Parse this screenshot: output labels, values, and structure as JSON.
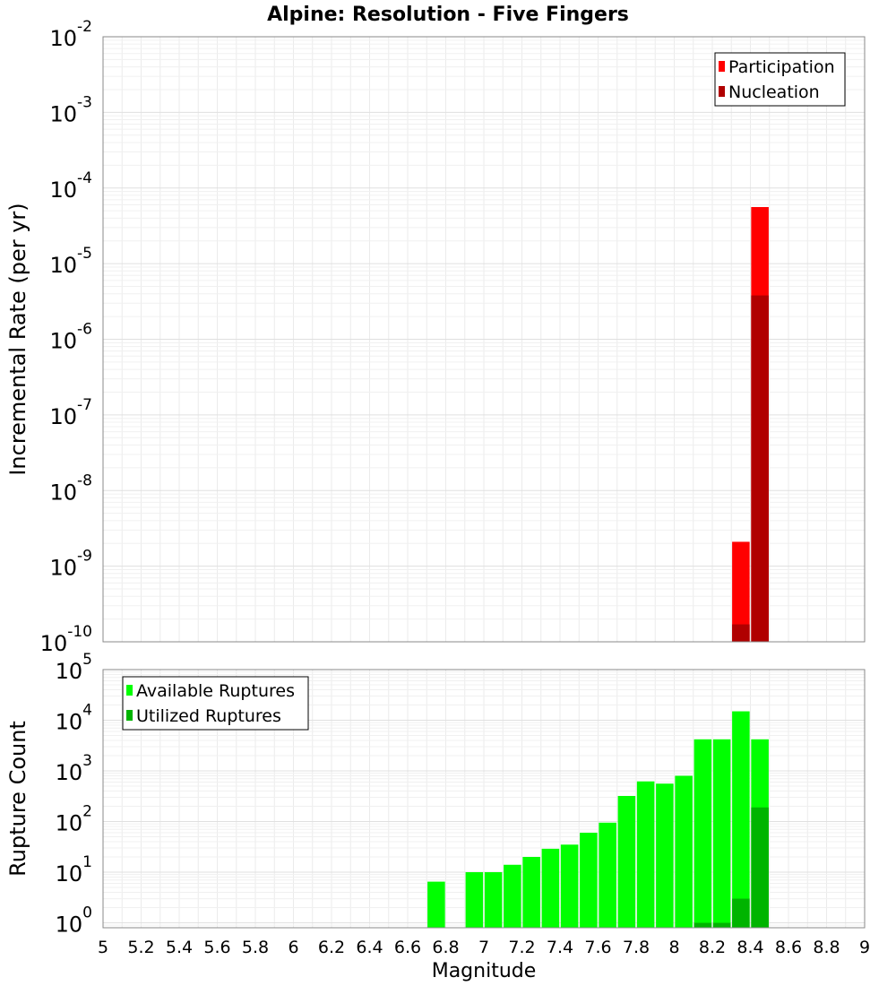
{
  "figure": {
    "title": "Alpine: Resolution - Five Fingers",
    "xlabel": "Magnitude"
  },
  "chart_data": [
    {
      "type": "bar",
      "panel": "top",
      "title": "Alpine: Resolution - Five Fingers",
      "xlabel": "Magnitude",
      "ylabel": "Incremental Rate (per yr)",
      "xlim": [
        5,
        9
      ],
      "ylim": [
        1e-10,
        0.01
      ],
      "yscale": "log",
      "grid": true,
      "legend_position": "top-right",
      "x_ticks": [
        "5",
        "5.2",
        "5.4",
        "5.6",
        "5.8",
        "6",
        "6.2",
        "6.4",
        "6.6",
        "6.8",
        "7",
        "7.2",
        "7.4",
        "7.6",
        "7.8",
        "8",
        "8.2",
        "8.4",
        "8.6",
        "8.8",
        "9"
      ],
      "y_ticks": [
        {
          "base": "10",
          "exp": "-10",
          "value": 1e-10
        },
        {
          "base": "10",
          "exp": "-9",
          "value": 1e-09
        },
        {
          "base": "10",
          "exp": "-8",
          "value": 1e-08
        },
        {
          "base": "10",
          "exp": "-7",
          "value": 1e-07
        },
        {
          "base": "10",
          "exp": "-6",
          "value": 1e-06
        },
        {
          "base": "10",
          "exp": "-5",
          "value": 1e-05
        },
        {
          "base": "10",
          "exp": "-4",
          "value": 0.0001
        },
        {
          "base": "10",
          "exp": "-3",
          "value": 0.001
        },
        {
          "base": "10",
          "exp": "-2",
          "value": 0.01
        }
      ],
      "series": [
        {
          "name": "Participation",
          "color": "#ff0000",
          "x": [
            8.35,
            8.45
          ],
          "values": [
            2.1e-09,
            5.6e-05
          ]
        },
        {
          "name": "Nucleation",
          "color": "#b00000",
          "x": [
            8.35,
            8.45
          ],
          "values": [
            1.7e-10,
            3.8e-06
          ]
        }
      ]
    },
    {
      "type": "bar",
      "panel": "bottom",
      "xlabel": "Magnitude",
      "ylabel": "Rupture Count",
      "xlim": [
        5,
        9
      ],
      "ylim": [
        0.8,
        100000.0
      ],
      "yscale": "log",
      "grid": true,
      "legend_position": "top-left",
      "y_ticks": [
        {
          "base": "10",
          "exp": "0",
          "value": 1
        },
        {
          "base": "10",
          "exp": "1",
          "value": 10
        },
        {
          "base": "10",
          "exp": "2",
          "value": 100
        },
        {
          "base": "10",
          "exp": "3",
          "value": 1000
        },
        {
          "base": "10",
          "exp": "4",
          "value": 10000
        },
        {
          "base": "10",
          "exp": "5",
          "value": 100000
        }
      ],
      "series": [
        {
          "name": "Available Ruptures",
          "color": "#00ff00",
          "x": [
            6.75,
            6.95,
            7.05,
            7.15,
            7.25,
            7.35,
            7.45,
            7.55,
            7.65,
            7.75,
            7.85,
            7.95,
            8.05,
            8.15,
            8.25,
            8.35,
            8.45
          ],
          "values": [
            6.5,
            10,
            10,
            14,
            20,
            29,
            35,
            60,
            95,
            320,
            620,
            560,
            800,
            4200,
            4200,
            15000,
            4200
          ]
        },
        {
          "name": "Utilized Ruptures",
          "color": "#00b400",
          "x": [
            8.15,
            8.25,
            8.35,
            8.45
          ],
          "values": [
            1,
            1,
            3,
            190
          ]
        }
      ]
    }
  ]
}
